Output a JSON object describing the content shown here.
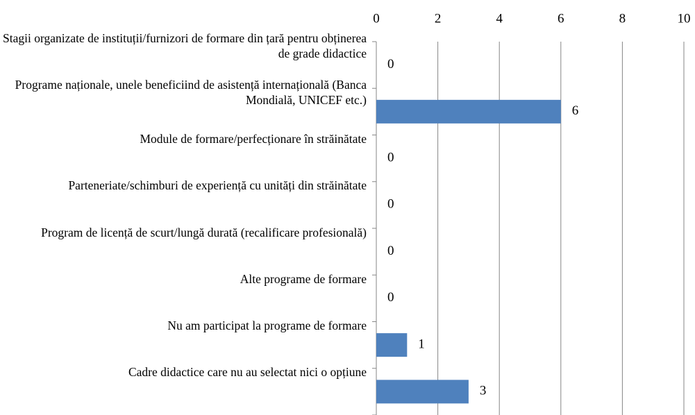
{
  "chart_data": {
    "type": "bar",
    "orientation": "horizontal",
    "categories": [
      "Stagii organizate de instituții/furnizori de formare din țară pentru obținerea de grade didactice",
      "Programe naționale, unele beneficiind de asistență internațională (Banca Mondială, UNICEF etc.)",
      "Module de formare/perfecționare în străinătate",
      "Parteneriate/schimburi de experiență cu unități din străinătate",
      "Program de licență de scurt/lungă durată (recalificare profesională)",
      "Alte programe de formare",
      "Nu am participat la programe de formare",
      "Cadre didactice care nu au selectat nici o opțiune"
    ],
    "values": [
      0,
      6,
      0,
      0,
      0,
      0,
      1,
      3
    ],
    "color": "#4f81bd",
    "xlim": [
      0,
      10
    ],
    "xticks": [
      0,
      2,
      4,
      6,
      8,
      10
    ],
    "grid": true
  }
}
